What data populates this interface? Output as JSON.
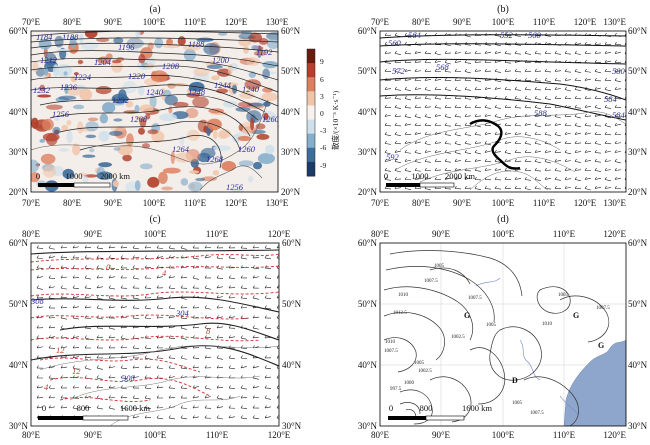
{
  "panels": [
    {
      "id": "a",
      "label": "(a)",
      "top_ticks": [
        "70°E",
        "80°E",
        "90°E",
        "100°E",
        "110°E",
        "120°E",
        "130°E"
      ],
      "bottom_ticks": [
        "70°E",
        "80°E",
        "90°E",
        "100°E",
        "110°E",
        "120°E",
        "130°E"
      ],
      "left_ticks": [
        "60°N",
        "50°N",
        "40°N",
        "30°N",
        "20°N"
      ],
      "right_ticks": [
        "60°N",
        "50°N",
        "40°N",
        "30°N",
        "20°N"
      ],
      "contour_labels": [
        "1184",
        "1188",
        "1196",
        "1188",
        "1192",
        "1212",
        "1204",
        "1208",
        "1200",
        "1232",
        "1224",
        "1220",
        "1236",
        "1240",
        "1244",
        "1252",
        "1248",
        "1240",
        "1256",
        "1268",
        "1260",
        "1264",
        "1268",
        "1260",
        "1256"
      ],
      "scale_labels": [
        "0",
        "1000",
        "2000 km"
      ]
    },
    {
      "id": "b",
      "label": "(b)",
      "top_ticks": [
        "70°E",
        "80°E",
        "90°E",
        "100°E",
        "110°E",
        "120°E",
        "130°E"
      ],
      "bottom_ticks": [
        "70°E",
        "80°E",
        "90°E",
        "100°E",
        "110°E",
        "120°E",
        "130°E"
      ],
      "left_ticks": [
        "60°N",
        "50°N",
        "40°N",
        "30°N",
        "20°N"
      ],
      "right_ticks": [
        "60°N",
        "50°N",
        "40°N",
        "30°N",
        "20°N"
      ],
      "contour_labels": [
        "560",
        "564",
        "552",
        "560",
        "572",
        "568",
        "580",
        "584",
        "588",
        "584",
        "592"
      ],
      "scale_labels": [
        "0",
        "1000",
        "2000 km"
      ]
    },
    {
      "id": "c",
      "label": "(c)",
      "top_ticks": [
        "80°E",
        "90°E",
        "100°E",
        "110°E",
        "120°E"
      ],
      "bottom_ticks": [
        "80°E",
        "90°E",
        "100°E",
        "110°E",
        "120°E"
      ],
      "left_ticks": [
        "60°N",
        "50°N",
        "40°N",
        "30°N"
      ],
      "right_ticks": [
        "60°N",
        "50°N",
        "40°N",
        "30°N"
      ],
      "contour_labels": [
        "308",
        "304",
        "308"
      ],
      "red_labels": [
        "0",
        "4",
        "8",
        "12",
        "12",
        "4"
      ],
      "scale_labels": [
        "0",
        "800",
        "1600 km"
      ]
    },
    {
      "id": "d",
      "label": "(d)",
      "top_ticks": [
        "80°E",
        "90°E",
        "100°E",
        "110°E",
        "120°E"
      ],
      "bottom_ticks": [
        "80°E",
        "90°E",
        "100°E",
        "110°E",
        "120°E"
      ],
      "left_ticks": [
        "60°N",
        "50°N",
        "40°N",
        "30°N"
      ],
      "right_ticks": [
        "60°N",
        "50°N",
        "40°N",
        "30°N"
      ],
      "isobar_labels": [
        "1005",
        "1007.5",
        "1010",
        "1012.5",
        "1007.5",
        "1005",
        "1002.5",
        "1005",
        "1007.5",
        "1010",
        "1010",
        "1007.5",
        "1005",
        "1002.5",
        "1000",
        "997.5",
        "1005",
        "1007.5"
      ],
      "pressure_centers": [
        "G",
        "G",
        "G",
        "D"
      ],
      "scale_labels": [
        "0",
        "800",
        "1600 km"
      ]
    }
  ],
  "colorbar": {
    "ticks": [
      "9",
      "6",
      "3",
      "0",
      "-3",
      "-6",
      "-9"
    ],
    "label": "散度/(×10⁻⁵ K·s⁻¹)",
    "colors": [
      "#6b1a10",
      "#b2402b",
      "#dd8060",
      "#f0c4a8",
      "#f7f2ee",
      "#cfe0ea",
      "#86aecb",
      "#3f6d9a",
      "#1e3a6a"
    ]
  }
}
